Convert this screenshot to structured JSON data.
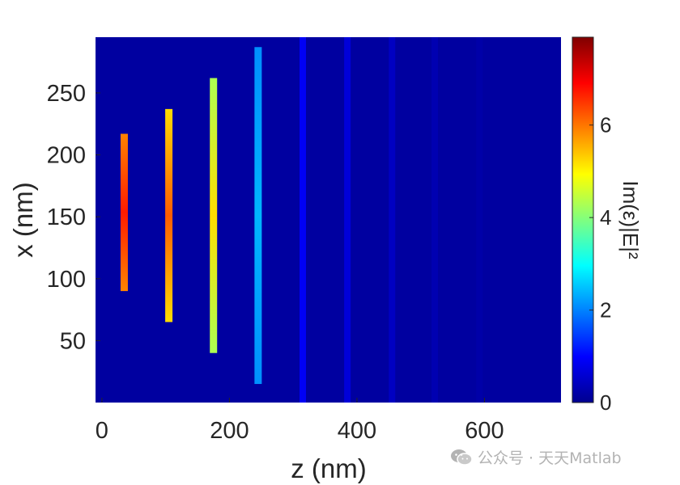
{
  "chart_data": {
    "type": "heatmap",
    "xlabel": "z (nm)",
    "ylabel": "x (nm)",
    "colorbar_label": "Im(ε)|E|²",
    "xlim": [
      -10,
      720
    ],
    "ylim": [
      0,
      295
    ],
    "xticks": [
      0,
      200,
      400,
      600
    ],
    "yticks": [
      50,
      100,
      150,
      200,
      250
    ],
    "colorbar_ticks": [
      0,
      2,
      4,
      6
    ],
    "colorbar_range": [
      0,
      7.9
    ],
    "colormap": "jet",
    "background_value": 0.15,
    "grid": false,
    "bars": [
      {
        "z": 35,
        "x_min": 90,
        "x_max": 217,
        "value": 6.7,
        "edge_value": 5.9
      },
      {
        "z": 105,
        "x_min": 65,
        "x_max": 237,
        "value": 6.2,
        "edge_value": 5.2
      },
      {
        "z": 175,
        "x_min": 40,
        "x_max": 262,
        "value": 5.2,
        "edge_value": 4.3
      },
      {
        "z": 245,
        "x_min": 15,
        "x_max": 287,
        "value": 2.4,
        "edge_value": 2.1
      }
    ],
    "faint_lines": [
      {
        "z": 315,
        "value": 0.9
      },
      {
        "z": 385,
        "value": 0.65
      },
      {
        "z": 455,
        "value": 0.45
      },
      {
        "z": 522,
        "value": 0.3
      },
      {
        "z": 592,
        "value": 0.22
      }
    ]
  },
  "watermark": {
    "text": "公众号 · 天天Matlab",
    "icon": "wechat-icon"
  }
}
